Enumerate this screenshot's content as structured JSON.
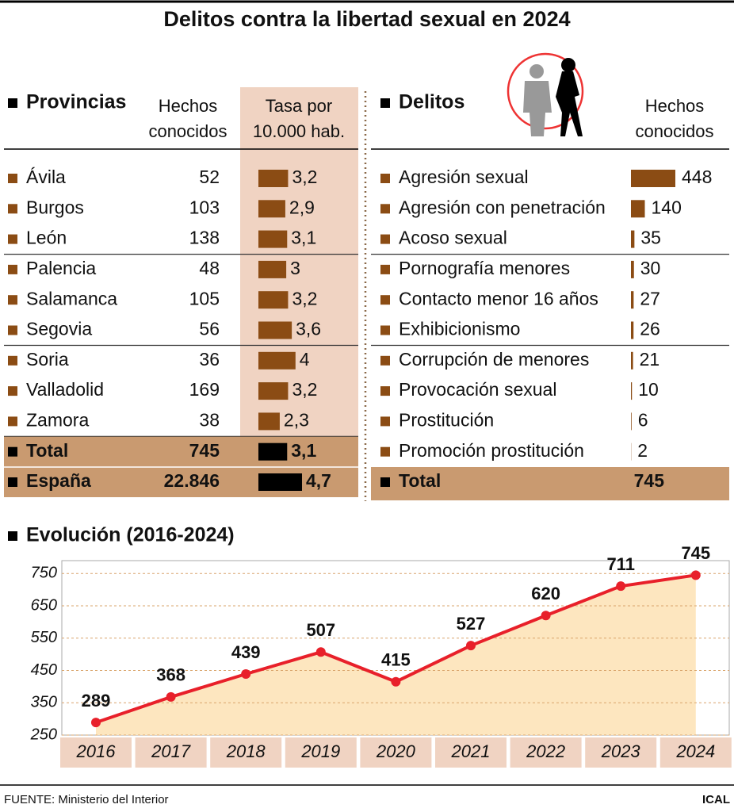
{
  "title": "Delitos contra la libertad sexual en 2024",
  "provincias": {
    "heading": "Provincias",
    "col_hechos": [
      "Hechos",
      "conocidos"
    ],
    "col_tasa": [
      "Tasa por",
      "10.000 hab."
    ],
    "bar_color": "#8b4c14",
    "groups": [
      [
        {
          "name": "Ávila",
          "hechos": 52,
          "tasa": {
            "value": 3.2,
            "label": "3,2"
          }
        },
        {
          "name": "Burgos",
          "hechos": 103,
          "tasa": {
            "value": 2.9,
            "label": "2,9"
          }
        },
        {
          "name": "León",
          "hechos": 138,
          "tasa": {
            "value": 3.1,
            "label": "3,1"
          }
        }
      ],
      [
        {
          "name": "Palencia",
          "hechos": 48,
          "tasa": 3
        },
        {
          "name": "Salamanca",
          "hechos": 105,
          "tasa": {
            "value": 3.2,
            "label": "3,2"
          }
        },
        {
          "name": "Segovia",
          "hechos": 56,
          "tasa": {
            "value": 3.6,
            "label": "3,6"
          }
        }
      ],
      [
        {
          "name": "Soria",
          "hechos": 36,
          "tasa": 4
        },
        {
          "name": "Valladolid",
          "hechos": 169,
          "tasa": {
            "value": 3.2,
            "label": "3,2"
          }
        },
        {
          "name": "Zamora",
          "hechos": 38,
          "tasa": {
            "value": 2.3,
            "label": "2,3"
          }
        }
      ]
    ],
    "totals": [
      {
        "name": "Total",
        "hechos": 745,
        "tasa": {
          "value": 3.1,
          "label": "3,1"
        }
      },
      {
        "name": "España",
        "hechos": {
          "value": 22846,
          "label": "22.846"
        },
        "tasa": {
          "value": 4.7,
          "label": "4,7"
        }
      }
    ],
    "total_bar_color": "#000000"
  },
  "delitos": {
    "heading": "Delitos",
    "col_hechos": [
      "Hechos",
      "conocidos"
    ],
    "bar_color": "#8b4c14",
    "groups": [
      [
        {
          "name": "Agresión sexual",
          "hechos": 448
        },
        {
          "name": "Agresión con penetración",
          "hechos": 140
        },
        {
          "name": "Acoso sexual",
          "hechos": 35
        }
      ],
      [
        {
          "name": "Pornografía menores",
          "hechos": 30
        },
        {
          "name": "Contacto menor 16 años",
          "hechos": 27
        },
        {
          "name": "Exhibicionismo",
          "hechos": 26
        }
      ],
      [
        {
          "name": "Corrupción de menores",
          "hechos": 21
        },
        {
          "name": "Provocación sexual",
          "hechos": 10
        },
        {
          "name": "Prostitución",
          "hechos": 6
        },
        {
          "name": "Promoción prostitución",
          "hechos": 2
        }
      ]
    ],
    "total": {
      "name": "Total",
      "hechos": 745
    }
  },
  "chart_data": {
    "type": "line",
    "title": "Evolución (2016-2024)",
    "categories": [
      "2016",
      "2017",
      "2018",
      "2019",
      "2020",
      "2021",
      "2022",
      "2023",
      "2024"
    ],
    "values": [
      289,
      368,
      439,
      507,
      415,
      527,
      620,
      711,
      745
    ],
    "color": "#e8202a",
    "area_color": "#fde6bf",
    "ylim": [
      250,
      790
    ],
    "yticks": [
      250,
      350,
      450,
      550,
      650,
      750
    ],
    "grid": true
  },
  "footer": {
    "source": "FUENTE: Ministerio del Interior",
    "brand": "ICAL"
  }
}
